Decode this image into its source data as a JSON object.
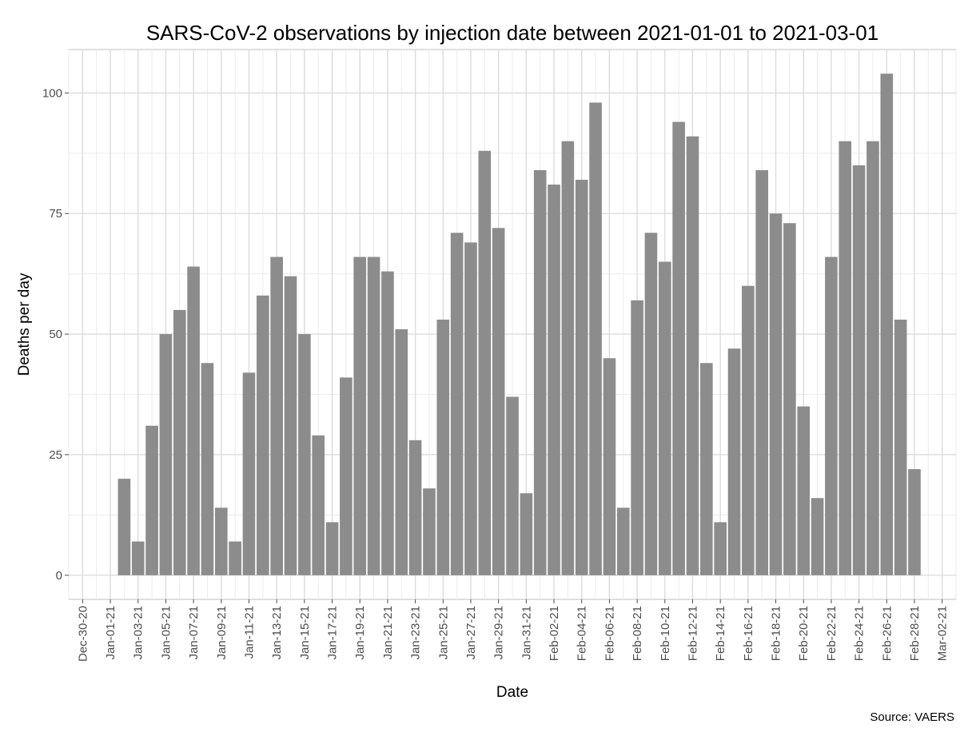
{
  "chart_data": {
    "type": "bar",
    "title": "SARS-CoV-2 observations by injection date between 2021-01-01 to 2021-03-01",
    "xlabel": "Date",
    "ylabel": "Deaths per day",
    "caption": "Source: VAERS",
    "x_ticks": [
      "Dec-30-20",
      "Jan-01-21",
      "Jan-03-21",
      "Jan-05-21",
      "Jan-07-21",
      "Jan-09-21",
      "Jan-11-21",
      "Jan-13-21",
      "Jan-15-21",
      "Jan-17-21",
      "Jan-19-21",
      "Jan-21-21",
      "Jan-23-21",
      "Jan-25-21",
      "Jan-27-21",
      "Jan-29-21",
      "Jan-31-21",
      "Feb-02-21",
      "Feb-04-21",
      "Feb-06-21",
      "Feb-08-21",
      "Feb-10-21",
      "Feb-12-21",
      "Feb-14-21",
      "Feb-16-21",
      "Feb-18-21",
      "Feb-20-21",
      "Feb-22-21",
      "Feb-24-21",
      "Feb-26-21",
      "Feb-28-21",
      "Mar-02-21"
    ],
    "y_ticks": [
      0,
      25,
      50,
      75,
      100
    ],
    "ylim": [
      -5,
      109
    ],
    "xlim": [
      "2020-12-29",
      "2021-03-03"
    ],
    "grid": true,
    "bar_color": "#8c8c8c",
    "x": [
      "2021-01-02",
      "2021-01-03",
      "2021-01-04",
      "2021-01-05",
      "2021-01-06",
      "2021-01-07",
      "2021-01-08",
      "2021-01-09",
      "2021-01-10",
      "2021-01-11",
      "2021-01-12",
      "2021-01-13",
      "2021-01-14",
      "2021-01-15",
      "2021-01-16",
      "2021-01-17",
      "2021-01-18",
      "2021-01-19",
      "2021-01-20",
      "2021-01-21",
      "2021-01-22",
      "2021-01-23",
      "2021-01-24",
      "2021-01-25",
      "2021-01-26",
      "2021-01-27",
      "2021-01-28",
      "2021-01-29",
      "2021-01-30",
      "2021-01-31",
      "2021-02-01",
      "2021-02-02",
      "2021-02-03",
      "2021-02-04",
      "2021-02-05",
      "2021-02-06",
      "2021-02-07",
      "2021-02-08",
      "2021-02-09",
      "2021-02-10",
      "2021-02-11",
      "2021-02-12",
      "2021-02-13",
      "2021-02-14",
      "2021-02-15",
      "2021-02-16",
      "2021-02-17",
      "2021-02-18",
      "2021-02-19",
      "2021-02-20",
      "2021-02-21",
      "2021-02-22",
      "2021-02-23",
      "2021-02-24",
      "2021-02-25",
      "2021-02-26",
      "2021-02-27",
      "2021-02-28"
    ],
    "values": [
      20,
      7,
      31,
      50,
      55,
      64,
      44,
      14,
      7,
      42,
      58,
      66,
      62,
      50,
      29,
      11,
      41,
      66,
      66,
      63,
      51,
      28,
      18,
      53,
      71,
      69,
      88,
      72,
      37,
      17,
      84,
      81,
      90,
      82,
      98,
      45,
      14,
      57,
      71,
      65,
      94,
      91,
      44,
      11,
      47,
      60,
      84,
      75,
      73,
      35,
      16,
      66,
      90,
      85,
      90,
      104,
      53,
      22
    ]
  }
}
